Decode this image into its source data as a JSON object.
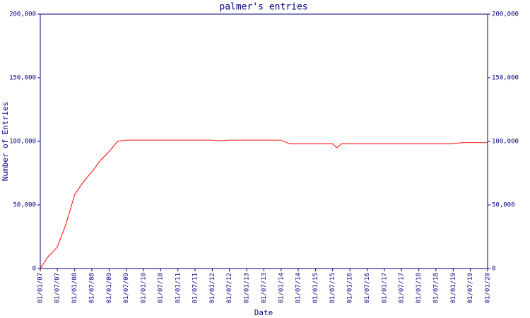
{
  "chart_data": {
    "type": "line",
    "title": "palmer's entries",
    "xlabel": "Date",
    "ylabel": "Number of Entries",
    "x": [
      "01/01/07",
      "01/04/07",
      "01/05/07",
      "01/07/07",
      "01/10/07",
      "01/01/08",
      "01/04/08",
      "01/07/08",
      "01/10/08",
      "01/01/09",
      "01/04/09",
      "01/07/09",
      "01/01/10",
      "01/01/11",
      "01/01/12",
      "01/04/12",
      "01/07/12",
      "01/01/13",
      "01/01/14",
      "01/04/14",
      "01/07/14",
      "01/01/15",
      "01/07/15",
      "15/08/15",
      "01/10/15",
      "01/01/16",
      "01/01/17",
      "01/01/18",
      "01/01/19",
      "01/04/19",
      "01/07/19",
      "01/01/20"
    ],
    "series": [
      {
        "name": "entries",
        "color": "#ff0000",
        "values": [
          0,
          10000,
          12000,
          17000,
          35000,
          58000,
          68000,
          76000,
          85000,
          92000,
          100000,
          101000,
          101000,
          101000,
          101000,
          100500,
          101000,
          101000,
          101000,
          98000,
          98000,
          98000,
          98000,
          95000,
          98000,
          98000,
          98000,
          98000,
          98000,
          99000,
          99000,
          99000
        ]
      }
    ],
    "xlim": [
      "01/01/07",
      "01/01/20"
    ],
    "xticks": [
      "01/01/07",
      "01/07/07",
      "01/01/08",
      "01/07/08",
      "01/01/09",
      "01/07/09",
      "01/01/10",
      "01/07/10",
      "01/01/11",
      "01/07/11",
      "01/01/12",
      "01/07/12",
      "01/01/13",
      "01/07/13",
      "01/01/14",
      "01/07/14",
      "01/01/15",
      "01/07/15",
      "01/01/16",
      "01/07/16",
      "01/01/17",
      "01/07/17",
      "01/01/18",
      "01/07/18",
      "01/01/19",
      "01/07/19",
      "01/01/20"
    ],
    "ylim": [
      0,
      200000
    ],
    "yticks": [
      0,
      {
        "value": 50000,
        "label": "50,000"
      },
      {
        "value": 100000,
        "label": "100,000"
      },
      {
        "value": 150000,
        "label": "150,000"
      },
      {
        "value": 200000,
        "label": "200,000"
      }
    ],
    "y2lim": [
      0,
      200000
    ],
    "y2ticks": [
      0,
      {
        "value": 50000,
        "label": "50,000"
      },
      {
        "value": 100000,
        "label": "100,000"
      },
      {
        "value": 150000,
        "label": "150,000"
      },
      {
        "value": 200000,
        "label": "200,000"
      }
    ],
    "axis_color": "#000080"
  }
}
